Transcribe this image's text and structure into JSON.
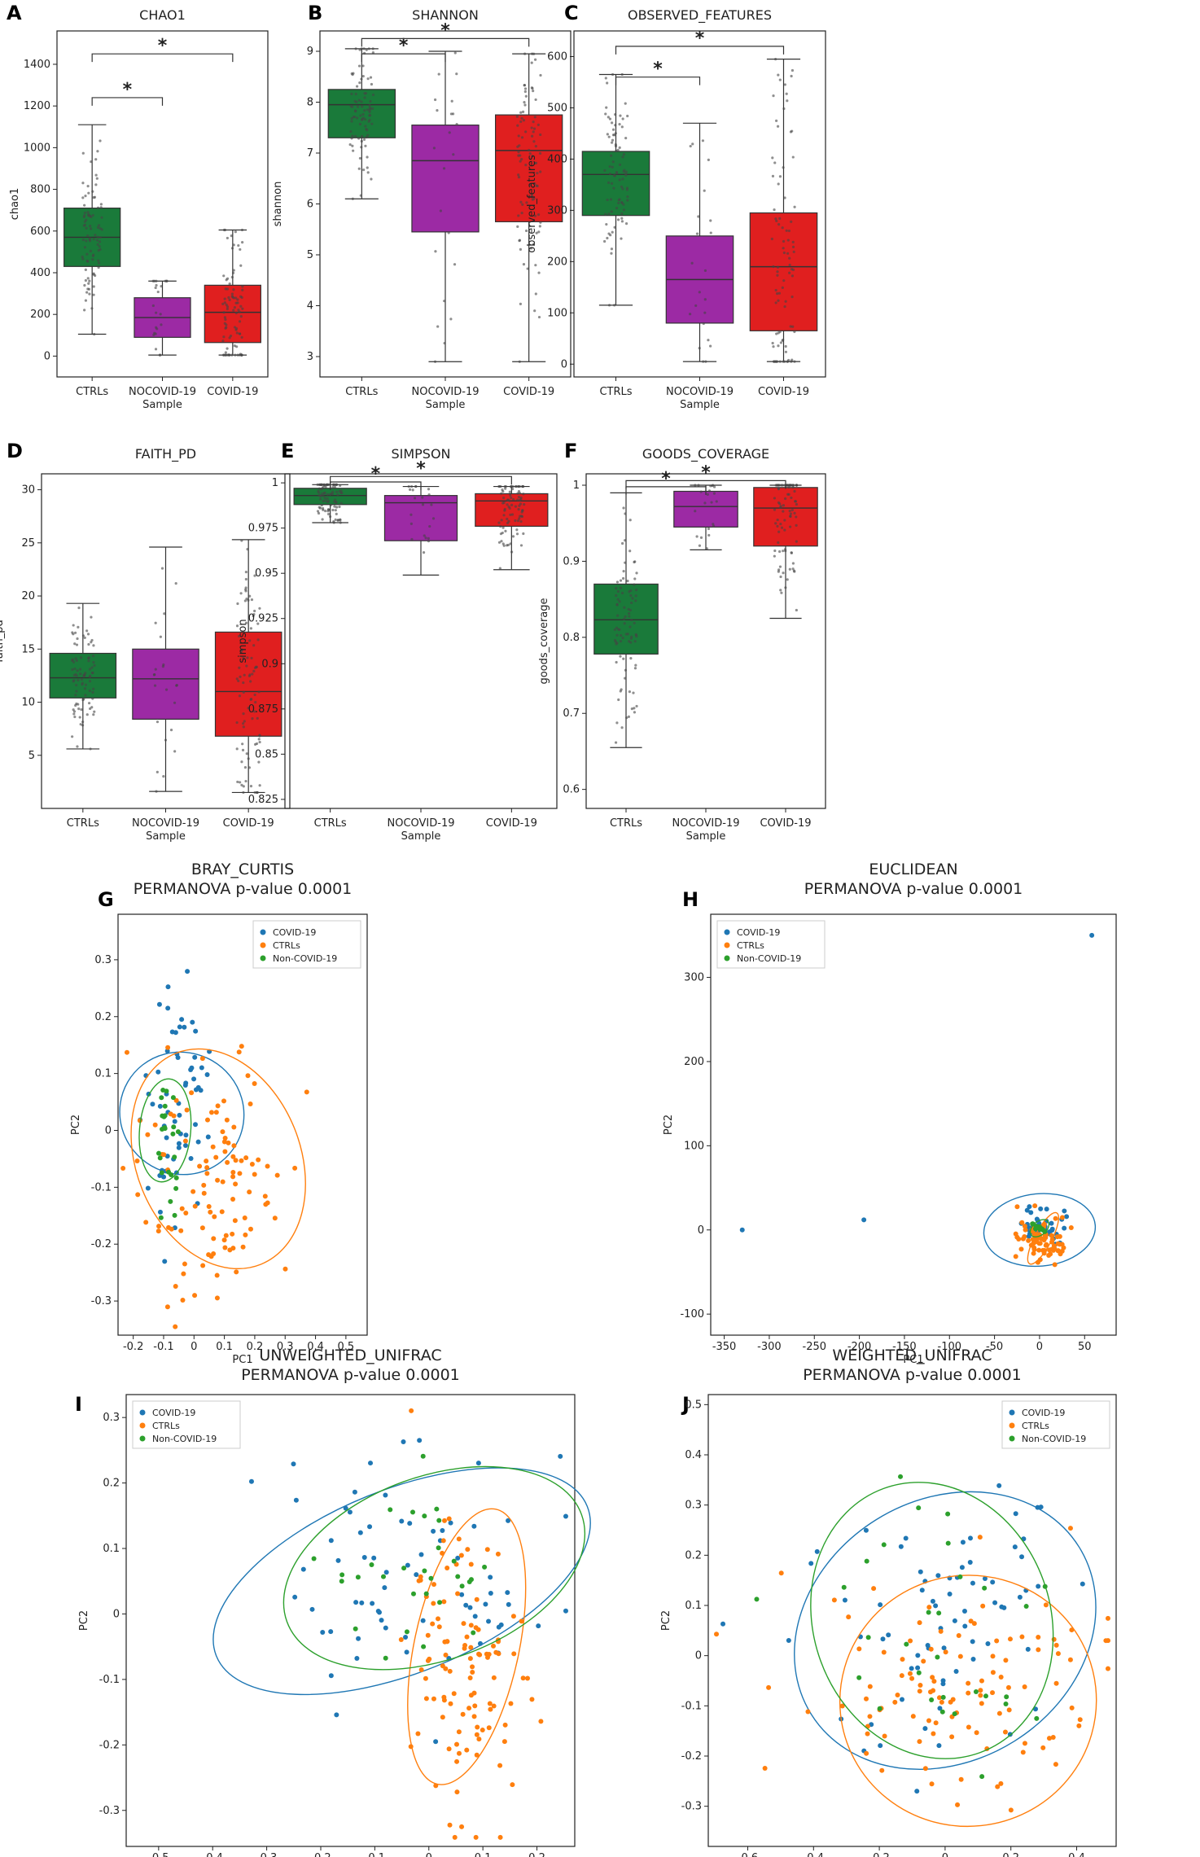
{
  "colors": {
    "ctrl_box": "#1a7a3a",
    "nocovid_box": "#9c2aa4",
    "covid_box": "#e01f1f",
    "scatter_covid": "#1f77b4",
    "scatter_ctrl": "#ff7f0e",
    "scatter_noncovid": "#2ca02c"
  },
  "chart_data": [
    {
      "id": "A",
      "type": "box",
      "title": "CHAO1",
      "ylabel": "chao1",
      "xlabel": "Sample",
      "categories": [
        "CTRLs",
        "NOCOVID-19",
        "COVID-19"
      ],
      "ylim": [
        -100,
        1560
      ],
      "yticks": [
        0,
        200,
        400,
        600,
        800,
        1000,
        1200,
        1400
      ],
      "boxes": [
        {
          "q1": 430,
          "median": 570,
          "q3": 710,
          "wlo": 105,
          "whi": 1110
        },
        {
          "q1": 90,
          "median": 185,
          "q3": 280,
          "wlo": 5,
          "whi": 360
        },
        {
          "q1": 65,
          "median": 210,
          "q3": 340,
          "wlo": 5,
          "whi": 605
        }
      ],
      "sig": [
        {
          "from": 0,
          "to": 1,
          "y": 1240,
          "label": "*"
        },
        {
          "from": 0,
          "to": 2,
          "y": 1450,
          "label": "*"
        }
      ]
    },
    {
      "id": "B",
      "type": "box",
      "title": "SHANNON",
      "ylabel": "shannon",
      "xlabel": "Sample",
      "categories": [
        "CTRLs",
        "NOCOVID-19",
        "COVID-19"
      ],
      "ylim": [
        2.6,
        9.4
      ],
      "yticks": [
        3,
        4,
        5,
        6,
        7,
        8,
        9
      ],
      "boxes": [
        {
          "q1": 7.3,
          "median": 7.95,
          "q3": 8.25,
          "wlo": 6.1,
          "whi": 9.05
        },
        {
          "q1": 5.45,
          "median": 6.85,
          "q3": 7.55,
          "wlo": 2.9,
          "whi": 9.0
        },
        {
          "q1": 5.65,
          "median": 7.05,
          "q3": 7.75,
          "wlo": 2.9,
          "whi": 8.95
        }
      ],
      "sig": [
        {
          "from": 0,
          "to": 1,
          "y": 8.95,
          "label": "*"
        },
        {
          "from": 0,
          "to": 2,
          "y": 9.25,
          "label": "*"
        }
      ]
    },
    {
      "id": "C",
      "type": "box",
      "title": "OBSERVED_FEATURES",
      "ylabel": "observed_features",
      "xlabel": "Sample",
      "categories": [
        "CTRLs",
        "NOCOVID-19",
        "COVID-19"
      ],
      "ylim": [
        -25,
        650
      ],
      "yticks": [
        0,
        100,
        200,
        300,
        400,
        500,
        600
      ],
      "boxes": [
        {
          "q1": 290,
          "median": 370,
          "q3": 415,
          "wlo": 115,
          "whi": 565
        },
        {
          "q1": 80,
          "median": 165,
          "q3": 250,
          "wlo": 5,
          "whi": 470
        },
        {
          "q1": 65,
          "median": 190,
          "q3": 295,
          "wlo": 5,
          "whi": 595
        }
      ],
      "sig": [
        {
          "from": 0,
          "to": 1,
          "y": 560,
          "label": "*"
        },
        {
          "from": 0,
          "to": 2,
          "y": 620,
          "label": "*"
        }
      ]
    },
    {
      "id": "D",
      "type": "box",
      "title": "FAITH_PD",
      "ylabel": "faith_pd",
      "xlabel": "Sample",
      "categories": [
        "CTRLs",
        "NOCOVID-19",
        "COVID-19"
      ],
      "ylim": [
        0,
        31.5
      ],
      "yticks": [
        5,
        10,
        15,
        20,
        25,
        30
      ],
      "boxes": [
        {
          "q1": 10.4,
          "median": 12.3,
          "q3": 14.6,
          "wlo": 5.6,
          "whi": 19.3
        },
        {
          "q1": 8.4,
          "median": 12.2,
          "q3": 15.0,
          "wlo": 1.6,
          "whi": 24.6
        },
        {
          "q1": 6.8,
          "median": 11.0,
          "q3": 16.6,
          "wlo": 1.5,
          "whi": 25.3
        }
      ],
      "sig": []
    },
    {
      "id": "E",
      "type": "box",
      "title": "SIMPSON",
      "ylabel": "simpson",
      "xlabel": "Sample",
      "categories": [
        "CTRLs",
        "NOCOVID-19",
        "COVID-19"
      ],
      "ylim": [
        0.82,
        1.005
      ],
      "yticks": [
        0.825,
        0.85,
        0.875,
        0.9,
        0.925,
        0.95,
        0.975,
        1.0
      ],
      "boxes": [
        {
          "q1": 0.988,
          "median": 0.993,
          "q3": 0.997,
          "wlo": 0.978,
          "whi": 0.999
        },
        {
          "q1": 0.968,
          "median": 0.989,
          "q3": 0.993,
          "wlo": 0.949,
          "whi": 0.998
        },
        {
          "q1": 0.976,
          "median": 0.99,
          "q3": 0.994,
          "wlo": 0.952,
          "whi": 0.998
        }
      ],
      "sig": [
        {
          "from": 0,
          "to": 1,
          "y": 1.0005,
          "label": "*"
        },
        {
          "from": 0,
          "to": 2,
          "y": 1.0035,
          "label": "*"
        }
      ]
    },
    {
      "id": "F",
      "type": "box",
      "title": "GOODS_COVERAGE",
      "ylabel": "goods_coverage",
      "xlabel": "Sample",
      "categories": [
        "CTRLs",
        "NOCOVID-19",
        "COVID-19"
      ],
      "ylim": [
        0.575,
        1.015
      ],
      "yticks": [
        0.6,
        0.7,
        0.8,
        0.9,
        1.0
      ],
      "boxes": [
        {
          "q1": 0.778,
          "median": 0.823,
          "q3": 0.87,
          "wlo": 0.655,
          "whi": 0.99
        },
        {
          "q1": 0.945,
          "median": 0.972,
          "q3": 0.992,
          "wlo": 0.915,
          "whi": 1.0
        },
        {
          "q1": 0.92,
          "median": 0.97,
          "q3": 0.997,
          "wlo": 0.825,
          "whi": 1.0
        }
      ],
      "sig": [
        {
          "from": 0,
          "to": 1,
          "y": 0.998,
          "label": "*"
        },
        {
          "from": 0,
          "to": 2,
          "y": 1.006,
          "label": "*"
        }
      ]
    },
    {
      "id": "G",
      "type": "scatter",
      "title": "BRAY_CURTIS",
      "subtitle": "PERMANOVA p-value 0.0001",
      "xlabel": "PC1",
      "ylabel": "PC2",
      "xlim": [
        -0.25,
        0.57
      ],
      "ylim": [
        -0.36,
        0.38
      ],
      "xticks": [
        -0.2,
        -0.1,
        0.0,
        0.1,
        0.2,
        0.3,
        0.4,
        0.5
      ],
      "yticks": [
        -0.3,
        -0.2,
        -0.1,
        0.0,
        0.1,
        0.2,
        0.3
      ],
      "legend_loc": "top-right",
      "series": [
        {
          "name": "COVID-19",
          "ellipse": {
            "cx": -0.04,
            "cy": 0.03,
            "rx": 0.2,
            "ry": 0.11,
            "angle": 60
          },
          "cloud": {
            "cx": -0.05,
            "cy": 0.05,
            "sx": 0.05,
            "sy": 0.1,
            "n": 60
          }
        },
        {
          "name": "CTRLs",
          "ellipse": {
            "cx": 0.08,
            "cy": -0.05,
            "rx": 0.27,
            "ry": 0.2,
            "angle": 22
          },
          "cloud": {
            "cx": 0.05,
            "cy": -0.08,
            "sx": 0.12,
            "sy": 0.11,
            "n": 110
          }
        },
        {
          "name": "Non-COVID-19",
          "ellipse": {
            "cx": -0.095,
            "cy": 0.0,
            "rx": 0.17,
            "ry": 0.045,
            "angle": 85
          },
          "cloud": {
            "cx": -0.09,
            "cy": -0.01,
            "sx": 0.025,
            "sy": 0.07,
            "n": 25
          }
        }
      ]
    },
    {
      "id": "H",
      "type": "scatter",
      "title": "EUCLIDEAN",
      "subtitle": "PERMANOVA p-value 0.0001",
      "xlabel": "PC1",
      "ylabel": "PC2",
      "xlim": [
        -365,
        85
      ],
      "ylim": [
        -125,
        375
      ],
      "xticks": [
        -350,
        -300,
        -250,
        -200,
        -150,
        -100,
        -50,
        0,
        50
      ],
      "yticks": [
        -100,
        0,
        100,
        200,
        300
      ],
      "legend_loc": "top-left",
      "series": [
        {
          "name": "COVID-19",
          "ellipse": {
            "cx": 0,
            "cy": 0,
            "rx": 62,
            "ry": 43,
            "angle": 5
          },
          "cloud": {
            "cx": 2,
            "cy": 2,
            "sx": 12,
            "sy": 10,
            "n": 40
          }
        },
        {
          "name": "CTRLs",
          "ellipse": {
            "cx": 4,
            "cy": -10,
            "rx": 32,
            "ry": 10,
            "angle": 62
          },
          "cloud": {
            "cx": 5,
            "cy": -8,
            "sx": 14,
            "sy": 14,
            "n": 80
          }
        },
        {
          "name": "Non-COVID-19",
          "ellipse": {
            "cx": 0,
            "cy": 2,
            "rx": 12,
            "ry": 8,
            "angle": 40
          },
          "cloud": {
            "cx": 0,
            "cy": 2,
            "sx": 5,
            "sy": 4,
            "n": 15
          }
        }
      ],
      "outliers": [
        {
          "series": "COVID-19",
          "x": 58,
          "y": 350
        },
        {
          "series": "COVID-19",
          "x": -330,
          "y": 0
        },
        {
          "series": "COVID-19",
          "x": -195,
          "y": 12
        }
      ]
    },
    {
      "id": "I",
      "type": "scatter",
      "title": "UNWEIGHTED_UNIFRAC",
      "subtitle": "PERMANOVA p-value 0.0001",
      "xlabel": "PC1",
      "ylabel": "PC2",
      "xlim": [
        -0.56,
        0.27
      ],
      "ylim": [
        -0.355,
        0.335
      ],
      "xticks": [
        -0.5,
        -0.4,
        -0.3,
        -0.2,
        -0.1,
        0.0,
        0.1,
        0.2
      ],
      "yticks": [
        -0.3,
        -0.2,
        -0.1,
        0.0,
        0.1,
        0.2,
        0.3
      ],
      "legend_loc": "top-left",
      "series": [
        {
          "name": "COVID-19",
          "ellipse": {
            "cx": -0.05,
            "cy": 0.05,
            "rx": 0.37,
            "ry": 0.14,
            "angle": 22
          },
          "cloud": {
            "cx": -0.05,
            "cy": 0.05,
            "sx": 0.15,
            "sy": 0.09,
            "n": 70
          }
        },
        {
          "name": "CTRLs",
          "ellipse": {
            "cx": 0.07,
            "cy": -0.05,
            "rx": 0.26,
            "ry": 0.08,
            "angle": 78
          },
          "cloud": {
            "cx": 0.07,
            "cy": -0.07,
            "sx": 0.05,
            "sy": 0.12,
            "n": 110
          }
        },
        {
          "name": "Non-COVID-19",
          "ellipse": {
            "cx": 0.01,
            "cy": 0.07,
            "rx": 0.29,
            "ry": 0.14,
            "angle": 20
          },
          "cloud": {
            "cx": -0.03,
            "cy": 0.08,
            "sx": 0.1,
            "sy": 0.06,
            "n": 30
          }
        }
      ]
    },
    {
      "id": "J",
      "type": "scatter",
      "title": "WEIGHTED_UNIFRAC",
      "subtitle": "PERMANOVA p-value 0.0001",
      "xlabel": "PC1",
      "ylabel": "PC2",
      "xlim": [
        -0.72,
        0.52
      ],
      "ylim": [
        -0.38,
        0.52
      ],
      "xticks": [
        -0.6,
        -0.4,
        -0.2,
        0.0,
        0.2,
        0.4
      ],
      "yticks": [
        -0.3,
        -0.2,
        -0.1,
        0.0,
        0.1,
        0.2,
        0.3,
        0.4,
        0.5
      ],
      "legend_loc": "top-right",
      "series": [
        {
          "name": "COVID-19",
          "ellipse": {
            "cx": 0.0,
            "cy": 0.05,
            "rx": 0.48,
            "ry": 0.26,
            "angle": 32
          },
          "cloud": {
            "cx": 0.0,
            "cy": 0.05,
            "sx": 0.2,
            "sy": 0.13,
            "n": 70
          }
        },
        {
          "name": "CTRLs",
          "ellipse": {
            "cx": 0.07,
            "cy": -0.09,
            "rx": 0.39,
            "ry": 0.25,
            "angle": 6
          },
          "cloud": {
            "cx": 0.05,
            "cy": -0.08,
            "sx": 0.22,
            "sy": 0.12,
            "n": 110
          }
        },
        {
          "name": "Non-COVID-19",
          "ellipse": {
            "cx": -0.04,
            "cy": 0.07,
            "rx": 0.36,
            "ry": 0.28,
            "angle": 20
          },
          "cloud": {
            "cx": -0.02,
            "cy": 0.05,
            "sx": 0.14,
            "sy": 0.13,
            "n": 30
          }
        }
      ]
    }
  ]
}
